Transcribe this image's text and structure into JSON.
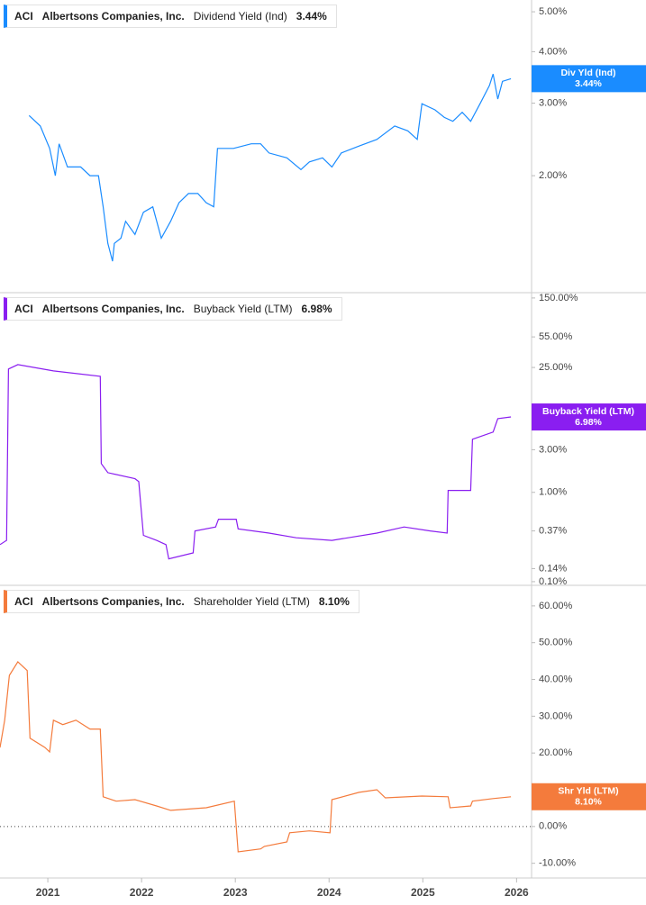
{
  "chart_data": [
    {
      "type": "line",
      "ticker": "ACI",
      "company": "Albertsons Companies, Inc.",
      "log_scale": true,
      "xlim": [
        2020.49,
        2026.16
      ],
      "ylim": [
        1.04,
        5.34
      ],
      "yticks": [
        {
          "value": 2,
          "label": "2.00%"
        },
        {
          "value": 3,
          "label": "3.00%"
        },
        {
          "value": 4,
          "label": "4.00%"
        },
        {
          "value": 5,
          "label": "5.00%"
        }
      ],
      "x": [
        2020.8,
        2020.92,
        2021.02,
        2021.08,
        2021.12,
        2021.21,
        2021.35,
        2021.45,
        2021.54,
        2021.59,
        2021.64,
        2021.69,
        2021.71,
        2021.78,
        2021.83,
        2021.93,
        2022.02,
        2022.12,
        2022.21,
        2022.31,
        2022.4,
        2022.5,
        2022.6,
        2022.69,
        2022.77,
        2022.81,
        2022.98,
        2023.17,
        2023.27,
        2023.36,
        2023.55,
        2023.7,
        2023.79,
        2023.93,
        2024.03,
        2024.13,
        2024.32,
        2024.51,
        2024.7,
        2024.84,
        2024.94,
        2024.99,
        2025.13,
        2025.23,
        2025.32,
        2025.42,
        2025.51,
        2025.61,
        2025.71,
        2025.75,
        2025.8,
        2025.85,
        2025.94
      ],
      "series": [
        {
          "name": "Dividend Yield (Ind)",
          "short_name": "Div Yld (Ind)",
          "color": "#1a8cff",
          "values": [
            2.8,
            2.64,
            2.33,
            2.0,
            2.39,
            2.1,
            2.1,
            2.0,
            2.0,
            1.68,
            1.37,
            1.24,
            1.37,
            1.41,
            1.55,
            1.44,
            1.63,
            1.68,
            1.41,
            1.55,
            1.72,
            1.81,
            1.81,
            1.72,
            1.68,
            2.33,
            2.33,
            2.39,
            2.39,
            2.27,
            2.21,
            2.07,
            2.16,
            2.21,
            2.1,
            2.27,
            2.36,
            2.45,
            2.64,
            2.57,
            2.45,
            2.99,
            2.89,
            2.77,
            2.71,
            2.85,
            2.71,
            2.99,
            3.31,
            3.53,
            3.07,
            3.39,
            3.44
          ],
          "current": {
            "value": 3.44,
            "label": "3.44%"
          }
        }
      ]
    },
    {
      "type": "line",
      "ticker": "ACI",
      "company": "Albertsons Companies, Inc.",
      "log_scale": true,
      "xlim": [
        2020.49,
        2026.16
      ],
      "ylim": [
        0.091,
        172
      ],
      "yticks": [
        {
          "value": 0.1,
          "label": "0.10%"
        },
        {
          "value": 0.14,
          "label": "0.14%"
        },
        {
          "value": 0.37,
          "label": "0.37%"
        },
        {
          "value": 1,
          "label": "1.00%"
        },
        {
          "value": 3,
          "label": "3.00%"
        },
        {
          "value": 25,
          "label": "25.00%"
        },
        {
          "value": 55,
          "label": "55.00%"
        },
        {
          "value": 150,
          "label": "150.00%"
        }
      ],
      "x": [
        2020.49,
        2020.56,
        2020.58,
        2020.68,
        2021.06,
        2021.56,
        2021.57,
        2021.64,
        2021.93,
        2021.97,
        2022.02,
        2022.16,
        2022.26,
        2022.29,
        2022.55,
        2022.57,
        2022.79,
        2022.82,
        2023.01,
        2023.03,
        2023.36,
        2023.65,
        2024.03,
        2024.51,
        2024.8,
        2025.08,
        2025.26,
        2025.27,
        2025.51,
        2025.53,
        2025.75,
        2025.8,
        2025.94
      ],
      "series": [
        {
          "name": "Buyback Yield (LTM)",
          "short_name": "Buyback Yield (LTM)",
          "color": "#8a1ef0",
          "values": [
            0.26,
            0.29,
            24.0,
            26.9,
            22.9,
            19.9,
            2.1,
            1.66,
            1.42,
            1.32,
            0.33,
            0.29,
            0.26,
            0.18,
            0.21,
            0.37,
            0.41,
            0.5,
            0.5,
            0.39,
            0.35,
            0.31,
            0.29,
            0.35,
            0.41,
            0.37,
            0.35,
            1.05,
            1.05,
            3.93,
            4.73,
            6.69,
            6.98
          ],
          "current": {
            "value": 6.98,
            "label": "6.98%"
          }
        }
      ]
    },
    {
      "type": "line",
      "ticker": "ACI",
      "company": "Albertsons Companies, Inc.",
      "log_scale": false,
      "zero_line": true,
      "xlim": [
        2020.49,
        2026.16
      ],
      "ylim": [
        -14,
        65.6
      ],
      "yticks": [
        {
          "value": -10,
          "label": "-10.00%"
        },
        {
          "value": 0,
          "label": "0.00%"
        },
        {
          "value": 20,
          "label": "20.00%"
        },
        {
          "value": 30,
          "label": "30.00%"
        },
        {
          "value": 40,
          "label": "40.00%"
        },
        {
          "value": 50,
          "label": "50.00%"
        },
        {
          "value": 60,
          "label": "60.00%"
        }
      ],
      "xticks": [
        2021,
        2022,
        2023,
        2024,
        2025,
        2026
      ],
      "x": [
        2020.49,
        2020.54,
        2020.59,
        2020.68,
        2020.78,
        2020.81,
        2020.97,
        2021.02,
        2021.06,
        2021.16,
        2021.3,
        2021.45,
        2021.56,
        2021.59,
        2021.73,
        2021.93,
        2022.16,
        2022.31,
        2022.69,
        2022.99,
        2023.03,
        2023.27,
        2023.31,
        2023.55,
        2023.58,
        2023.79,
        2024.01,
        2024.03,
        2024.32,
        2024.51,
        2024.6,
        2024.99,
        2025.27,
        2025.29,
        2025.51,
        2025.53,
        2025.75,
        2025.94
      ],
      "series": [
        {
          "name": "Shareholder Yield (LTM)",
          "short_name": "Shr Yld (LTM)",
          "color": "#f47b3c",
          "values": [
            21.5,
            28.9,
            41.1,
            44.8,
            42.4,
            24.0,
            21.5,
            20.3,
            28.9,
            27.7,
            28.9,
            26.5,
            26.5,
            8.1,
            6.9,
            7.3,
            5.6,
            4.4,
            5.1,
            6.9,
            -6.9,
            -6.1,
            -5.4,
            -4.2,
            -1.7,
            -1.2,
            -1.7,
            7.3,
            9.3,
            10.0,
            7.8,
            8.3,
            8.1,
            5.1,
            5.6,
            6.9,
            7.6,
            8.1
          ],
          "current": {
            "value": 8.1,
            "label": "8.10%"
          }
        }
      ]
    }
  ]
}
